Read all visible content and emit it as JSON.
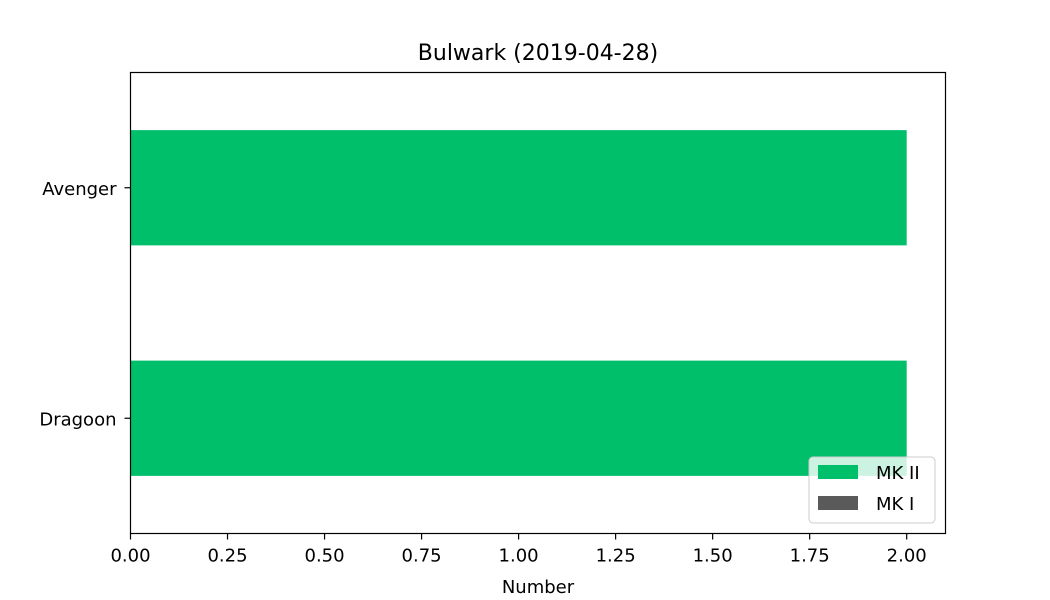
{
  "chart_data": {
    "type": "bar",
    "orientation": "horizontal",
    "title": "Bulwark (2019-04-28)",
    "xlabel": "Number",
    "ylabel": "",
    "categories": [
      "Dragoon",
      "Avenger"
    ],
    "series": [
      {
        "name": "MK II",
        "values": [
          2,
          2
        ],
        "color": "#00bf6b"
      },
      {
        "name": "MK I",
        "values": [
          0,
          0
        ],
        "color": "#5a5a5a"
      }
    ],
    "xlim": [
      0,
      2.1
    ],
    "xticks": [
      "0.00",
      "0.25",
      "0.50",
      "0.75",
      "1.00",
      "1.25",
      "1.50",
      "1.75",
      "2.00"
    ],
    "stacked": true,
    "grid": false,
    "legend_position": "lower-right"
  }
}
